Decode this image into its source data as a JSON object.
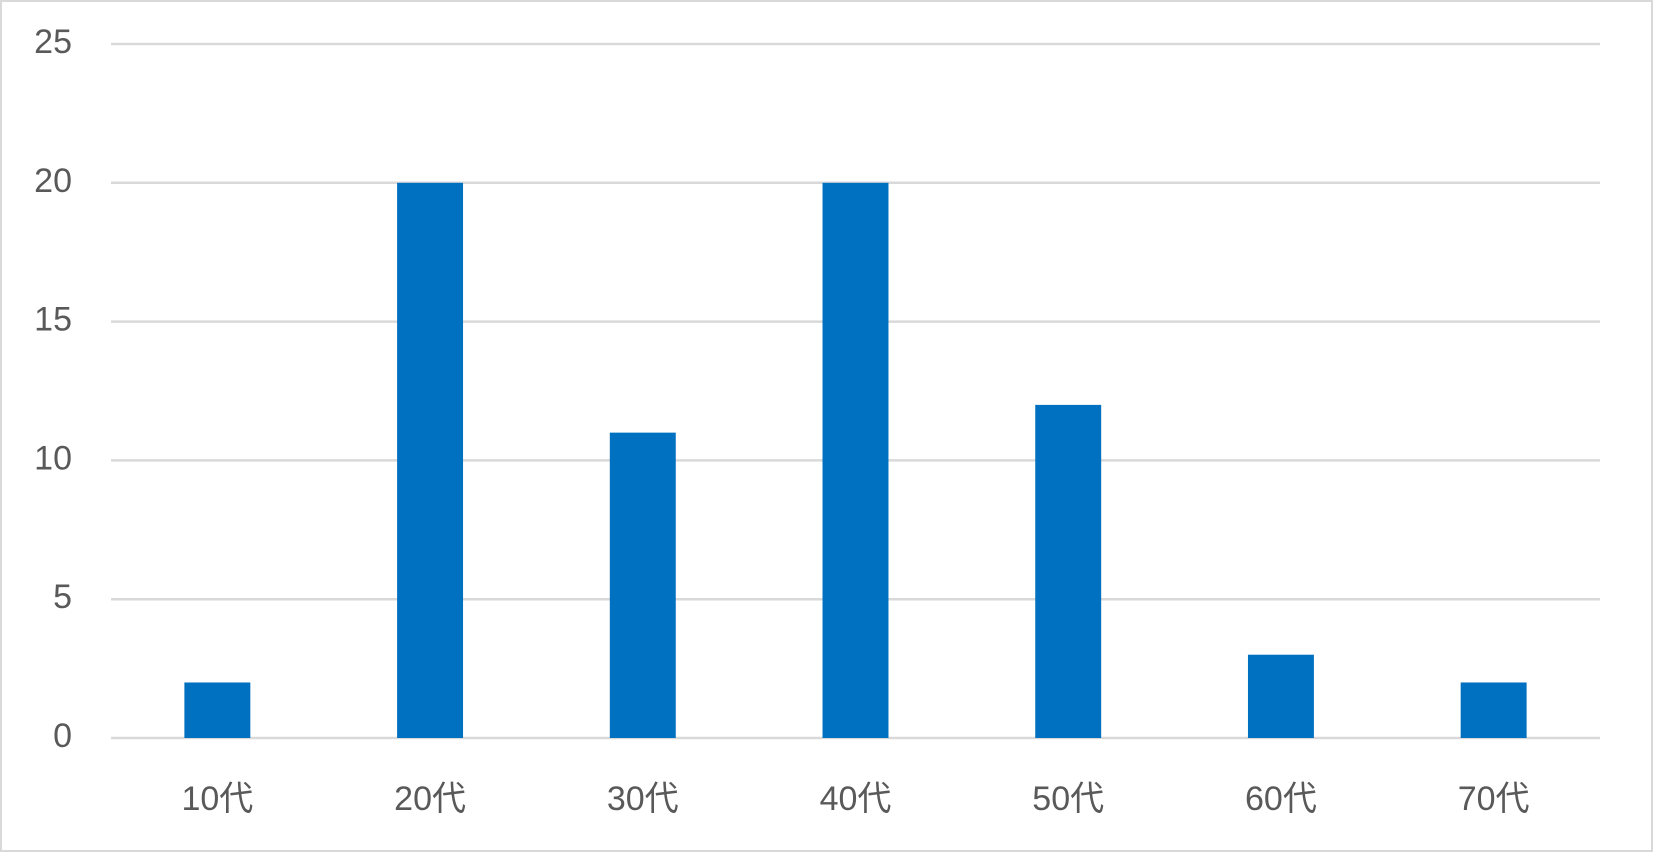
{
  "chart_data": {
    "type": "bar",
    "categories": [
      "10代",
      "20代",
      "30代",
      "40代",
      "50代",
      "60代",
      "70代"
    ],
    "values": [
      2,
      20,
      11,
      20,
      12,
      3,
      2
    ],
    "color": "#0070c0",
    "ylim": [
      0,
      25
    ],
    "yticks": [
      0,
      5,
      10,
      15,
      20,
      25
    ],
    "grid": true
  }
}
